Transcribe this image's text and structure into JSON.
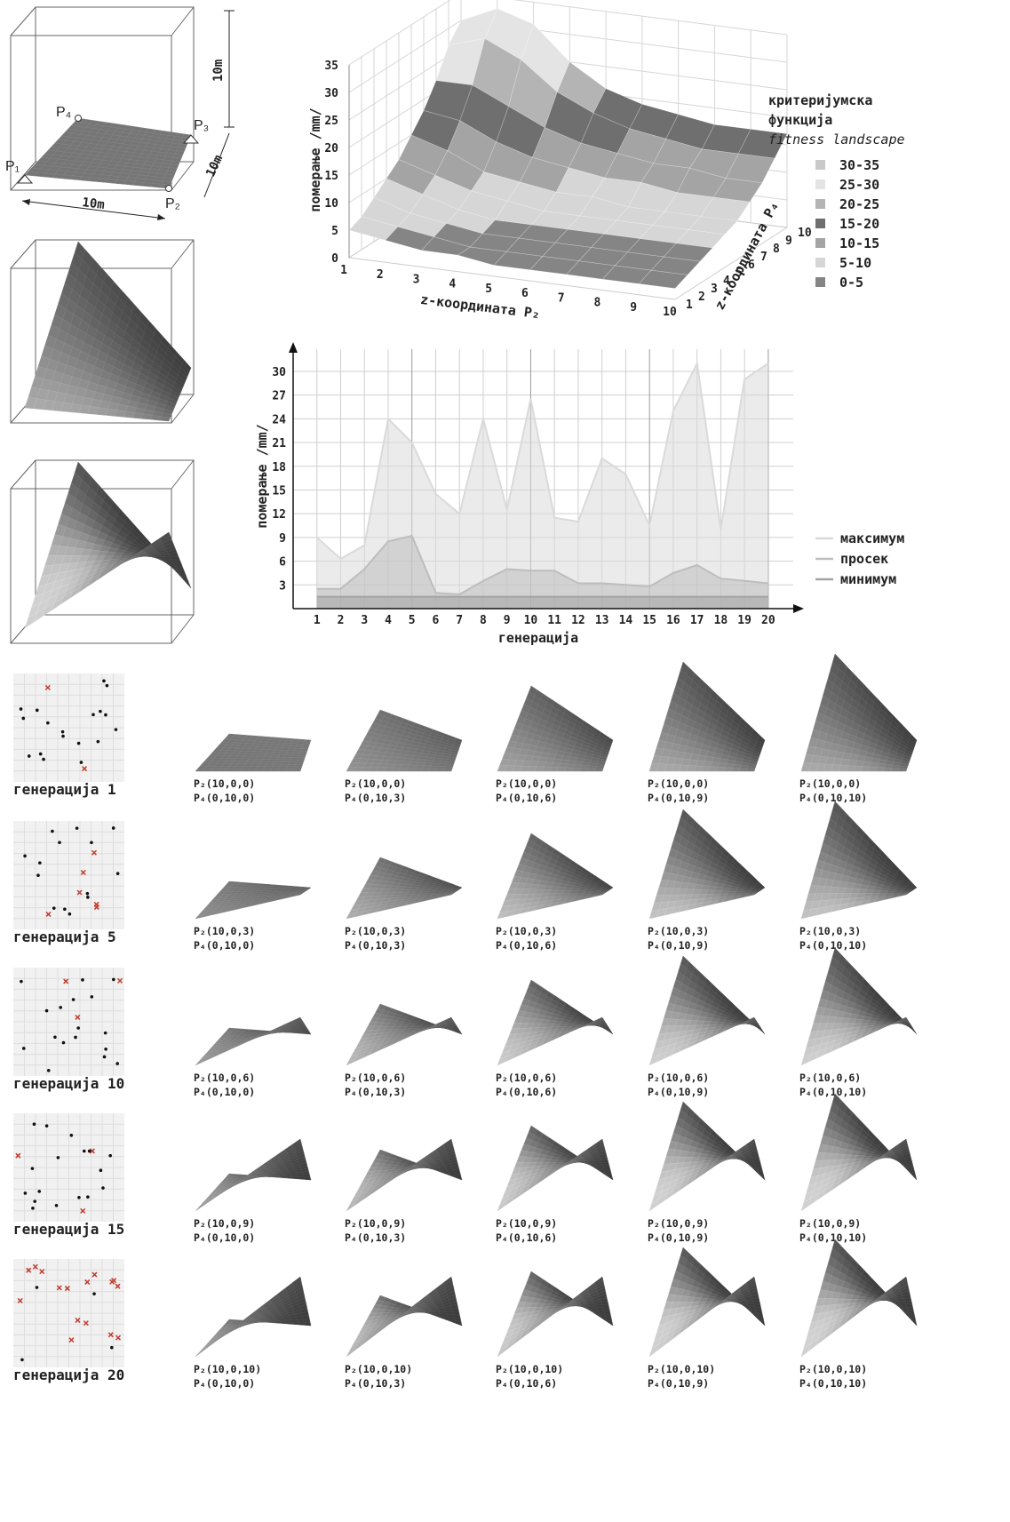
{
  "diagram": {
    "points": {
      "p1": "P₁",
      "p2": "P₂",
      "p3": "P₃",
      "p4": "P₄"
    },
    "dimensions": [
      "10m",
      "10m",
      "10m"
    ]
  },
  "chart_data": [
    {
      "type": "surface3d",
      "zlabel": "померање /mm/",
      "xlabel": "z-координата P₂",
      "ylabel": "z-координата P₄",
      "legend_title": [
        "критеријумска",
        "функција"
      ],
      "legend_subtitle": "fitness landscape",
      "x": [
        1,
        2,
        3,
        4,
        5,
        6,
        7,
        8,
        9,
        10
      ],
      "y": [
        1,
        2,
        3,
        4,
        5,
        6,
        7,
        8,
        9,
        10
      ],
      "zlim": [
        0,
        35
      ],
      "zticks": [
        0,
        5,
        10,
        15,
        20,
        25,
        30,
        35
      ],
      "values": [
        [
          5,
          4,
          3,
          3,
          2,
          2,
          2,
          2,
          2,
          2
        ],
        [
          6,
          5,
          4,
          3,
          3,
          3,
          3,
          3,
          3,
          3
        ],
        [
          8,
          6,
          5,
          4,
          4,
          4,
          4,
          4,
          4,
          4
        ],
        [
          10,
          8,
          6,
          5,
          5,
          5,
          5,
          5,
          5,
          5
        ],
        [
          12,
          10,
          8,
          7,
          6,
          6,
          6,
          6,
          6,
          6
        ],
        [
          15,
          13,
          10,
          9,
          8,
          8,
          7,
          7,
          7,
          7
        ],
        [
          18,
          17,
          14,
          12,
          11,
          10,
          10,
          9,
          9,
          9
        ],
        [
          22,
          22,
          19,
          16,
          14,
          13,
          12,
          12,
          11,
          11
        ],
        [
          27,
          29,
          26,
          21,
          18,
          16,
          15,
          14,
          14,
          14
        ],
        [
          30,
          33,
          31,
          25,
          21,
          19,
          18,
          17,
          17,
          17
        ]
      ],
      "bands": [
        {
          "label": "30-35",
          "color": "#c9c9c9"
        },
        {
          "label": "25-30",
          "color": "#e4e4e4"
        },
        {
          "label": "20-25",
          "color": "#b4b4b4"
        },
        {
          "label": "15-20",
          "color": "#6f6f6f"
        },
        {
          "label": "10-15",
          "color": "#a4a4a4"
        },
        {
          "label": "5-10",
          "color": "#d6d6d6"
        },
        {
          "label": "0-5",
          "color": "#858585"
        }
      ]
    },
    {
      "type": "area",
      "xlabel": "генерација",
      "ylabel": "померање /mm/",
      "x": [
        1,
        2,
        3,
        4,
        5,
        6,
        7,
        8,
        9,
        10,
        11,
        12,
        13,
        14,
        15,
        16,
        17,
        18,
        19,
        20
      ],
      "xlim": [
        0,
        21.5
      ],
      "xticks": [
        1,
        2,
        3,
        4,
        5,
        6,
        7,
        8,
        9,
        10,
        11,
        12,
        13,
        14,
        15,
        16,
        17,
        18,
        19,
        20
      ],
      "ylim": [
        0,
        33.7
      ],
      "yticks": [
        3,
        6,
        9,
        12,
        15,
        18,
        21,
        24,
        27,
        30
      ],
      "grid": true,
      "series": [
        {
          "name": "максимум",
          "color": "#dadada",
          "values": [
            9,
            6.3,
            8,
            24,
            21,
            14.5,
            12,
            24,
            12.5,
            26.5,
            11.5,
            11,
            19,
            17,
            10.5,
            25,
            31,
            10,
            29,
            31
          ]
        },
        {
          "name": "просек",
          "color": "#bdbdbd",
          "values": [
            2.5,
            2.5,
            5,
            8.5,
            9.2,
            2,
            1.8,
            3.5,
            5,
            4.8,
            4.8,
            3.2,
            3.2,
            3,
            2.8,
            4.5,
            5.5,
            3.8,
            3.5,
            3.2
          ]
        },
        {
          "name": "минимум",
          "color": "#a3a3a3",
          "values": [
            1.5,
            1.5,
            1.5,
            1.5,
            1.5,
            1.5,
            1.5,
            1.5,
            1.5,
            1.5,
            1.5,
            1.5,
            1.5,
            1.5,
            1.5,
            1.5,
            1.5,
            1.5,
            1.5,
            1.5
          ]
        }
      ]
    }
  ],
  "generations": {
    "rows": [
      {
        "label": "генерација 1",
        "cells": [
          {
            "p2": "P₂(10,0,0)",
            "p4": "P₄(0,10,0)"
          },
          {
            "p2": "P₂(10,0,0)",
            "p4": "P₄(0,10,3)"
          },
          {
            "p2": "P₂(10,0,0)",
            "p4": "P₄(0,10,6)"
          },
          {
            "p2": "P₂(10,0,0)",
            "p4": "P₄(0,10,9)"
          },
          {
            "p2": "P₂(10,0,0)",
            "p4": "P₄(0,10,10)"
          }
        ]
      },
      {
        "label": "генерација 5",
        "cells": [
          {
            "p2": "P₂(10,0,3)",
            "p4": "P₄(0,10,0)"
          },
          {
            "p2": "P₂(10,0,3)",
            "p4": "P₄(0,10,3)"
          },
          {
            "p2": "P₂(10,0,3)",
            "p4": "P₄(0,10,6)"
          },
          {
            "p2": "P₂(10,0,3)",
            "p4": "P₄(0,10,9)"
          },
          {
            "p2": "P₂(10,0,3)",
            "p4": "P₄(0,10,10)"
          }
        ]
      },
      {
        "label": "генерација 10",
        "cells": [
          {
            "p2": "P₂(10,0,6)",
            "p4": "P₄(0,10,0)"
          },
          {
            "p2": "P₂(10,0,6)",
            "p4": "P₄(0,10,3)"
          },
          {
            "p2": "P₂(10,0,6)",
            "p4": "P₄(0,10,6)"
          },
          {
            "p2": "P₂(10,0,6)",
            "p4": "P₄(0,10,9)"
          },
          {
            "p2": "P₂(10,0,6)",
            "p4": "P₄(0,10,10)"
          }
        ]
      },
      {
        "label": "генерација 15",
        "cells": [
          {
            "p2": "P₂(10,0,9)",
            "p4": "P₄(0,10,0)"
          },
          {
            "p2": "P₂(10,0,9)",
            "p4": "P₄(0,10,3)"
          },
          {
            "p2": "P₂(10,0,9)",
            "p4": "P₄(0,10,6)"
          },
          {
            "p2": "P₂(10,0,9)",
            "p4": "P₄(0,10,9)"
          },
          {
            "p2": "P₂(10,0,9)",
            "p4": "P₄(0,10,10)"
          }
        ]
      },
      {
        "label": "генерација 20",
        "cells": [
          {
            "p2": "P₂(10,0,10)",
            "p4": "P₄(0,10,0)"
          },
          {
            "p2": "P₂(10,0,10)",
            "p4": "P₄(0,10,3)"
          },
          {
            "p2": "P₂(10,0,10)",
            "p4": "P₄(0,10,6)"
          },
          {
            "p2": "P₂(10,0,10)",
            "p4": "P₄(0,10,9)"
          },
          {
            "p2": "P₂(10,0,10)",
            "p4": "P₄(0,10,10)"
          }
        ]
      }
    ]
  }
}
